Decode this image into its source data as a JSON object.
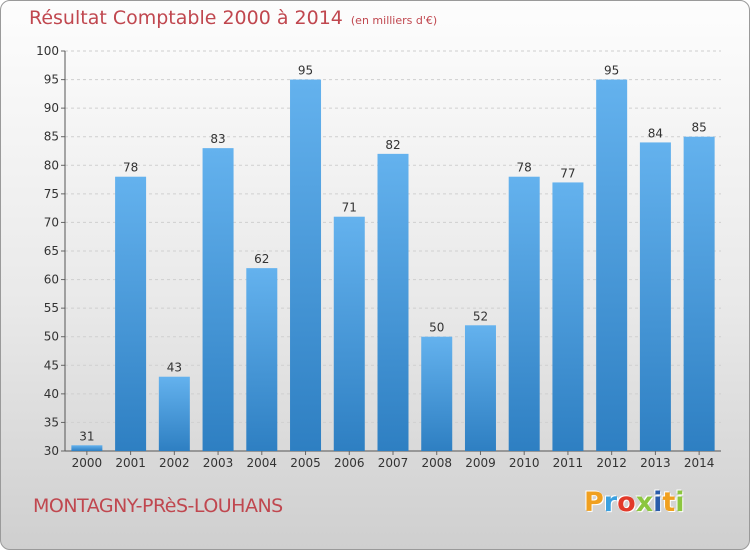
{
  "chart_data": {
    "type": "bar",
    "title": "Résultat Comptable 2000 à 2014",
    "subtitle": "(en milliers d'€)",
    "categories": [
      "2000",
      "2001",
      "2002",
      "2003",
      "2004",
      "2005",
      "2006",
      "2007",
      "2008",
      "2009",
      "2010",
      "2011",
      "2012",
      "2013",
      "2014"
    ],
    "values": [
      31,
      78,
      43,
      83,
      62,
      95,
      71,
      82,
      50,
      52,
      78,
      77,
      95,
      84,
      85
    ],
    "ylim": [
      30,
      100
    ],
    "yticks": [
      30,
      35,
      40,
      45,
      50,
      55,
      60,
      65,
      70,
      75,
      80,
      85,
      90,
      95,
      100
    ],
    "grid": true,
    "bar_color": "#4a9fdf",
    "xlabel": "",
    "ylabel": ""
  },
  "footer": {
    "town": "MONTAGNY-PRèS-LOUHANS",
    "logo_letters": [
      "P",
      "r",
      "o",
      "x",
      "i",
      "t",
      "i"
    ],
    "logo_colors": [
      "#f0a020",
      "#3aa0e0",
      "#e23a2a",
      "#8cc63f",
      "#2a5caa",
      "#f0a020",
      "#8cc63f"
    ]
  },
  "colors": {
    "title": "#c0474f",
    "grid": "#cfcfcf",
    "axis_text": "#333333"
  }
}
